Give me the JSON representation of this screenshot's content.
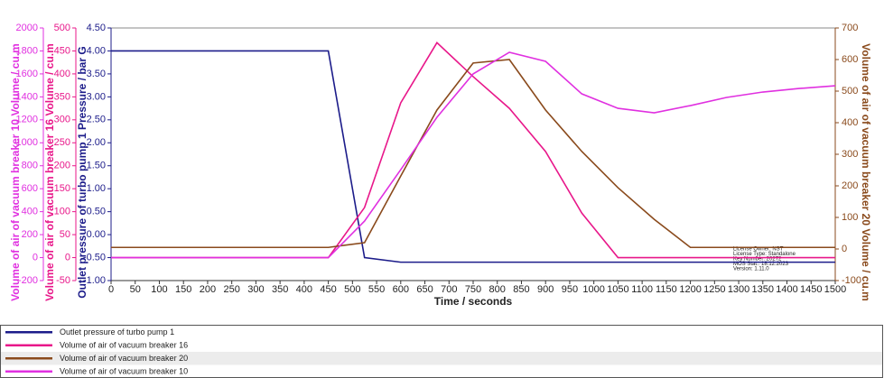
{
  "chart_data": {
    "type": "line",
    "x_label": "Time / seconds",
    "x": [
      0,
      75,
      150,
      225,
      300,
      375,
      450,
      525,
      600,
      675,
      750,
      825,
      900,
      975,
      1050,
      1125,
      1200,
      1275,
      1350,
      1425,
      1500
    ],
    "xlim": [
      0,
      1500
    ],
    "xticks": [
      0,
      50,
      100,
      150,
      200,
      250,
      300,
      350,
      400,
      450,
      500,
      550,
      600,
      650,
      700,
      750,
      800,
      850,
      900,
      950,
      1000,
      1050,
      1100,
      1150,
      1200,
      1250,
      1300,
      1350,
      1400,
      1450,
      1500
    ],
    "axes": [
      {
        "label": "Volume of air of vacuum breaker 10 Volume / cu.m",
        "color": "#e030e0",
        "side": "left",
        "lim": [
          -200,
          2000
        ],
        "ticks": [
          -200,
          0,
          200,
          400,
          600,
          800,
          1000,
          1200,
          1400,
          1600,
          1800,
          2000
        ]
      },
      {
        "label": "Volume of air of vacuum breaker 16 Volume / cu.m",
        "color": "#e8178a",
        "side": "left",
        "lim": [
          -50,
          500
        ],
        "ticks": [
          -50,
          0,
          50,
          100,
          150,
          200,
          250,
          300,
          350,
          400,
          450,
          500
        ]
      },
      {
        "label": "Outlet pressure of turbo pump 1 Pressure / bar G",
        "color": "#1c1c8a",
        "side": "left",
        "lim": [
          -1,
          4.5
        ],
        "ticks": [
          {
            "value": -1,
            "label": "-1.00"
          },
          {
            "value": -0.5,
            "label": "-0.50"
          },
          {
            "value": 0,
            "label": "0.00"
          },
          {
            "value": 0.5,
            "label": "0.50"
          },
          {
            "value": 1,
            "label": "1.00"
          },
          {
            "value": 1.5,
            "label": "1.50"
          },
          {
            "value": 2,
            "label": "2.00"
          },
          {
            "value": 2.5,
            "label": "2.50"
          },
          {
            "value": 3,
            "label": "3.00"
          },
          {
            "value": 3.5,
            "label": "3.50"
          },
          {
            "value": 4,
            "label": "4.00"
          },
          {
            "value": 4.5,
            "label": "4.50"
          }
        ]
      },
      {
        "label": "Volume of air of vacuum breaker 20 Volume / cu.m",
        "color": "#8a4a1c",
        "side": "right",
        "lim": [
          -100,
          700
        ],
        "ticks": [
          -100,
          0,
          100,
          200,
          300,
          400,
          500,
          600,
          700
        ]
      }
    ],
    "series": [
      {
        "name": "Outlet pressure of turbo pump 1",
        "color": "#1c1c8a",
        "axis": 2,
        "values": [
          4,
          4,
          4,
          4,
          4,
          4,
          4,
          -0.5,
          -0.6,
          -0.6,
          -0.6,
          -0.6,
          -0.6,
          -0.6,
          -0.6,
          -0.6,
          -0.6,
          -0.6,
          -0.6,
          -0.6,
          -0.6
        ]
      },
      {
        "name": "Volume of air of vacuum breaker 16",
        "color": "#e8178a",
        "axis": 1,
        "values": [
          0,
          0,
          0,
          0,
          0,
          0,
          0,
          109,
          337,
          468,
          394,
          325,
          231,
          97,
          0,
          0,
          0,
          0,
          0,
          0,
          0
        ]
      },
      {
        "name": "Volume of air of vacuum breaker 20",
        "color": "#8a4a1c",
        "axis": 3,
        "values": [
          5,
          5,
          5,
          5,
          5,
          5,
          5,
          20,
          231,
          440,
          589,
          600,
          440,
          309,
          194,
          94,
          5,
          5,
          5,
          5,
          5
        ]
      },
      {
        "name": "Volume of air of vacuum breaker 10",
        "color": "#e030e0",
        "axis": 0,
        "values": [
          0,
          0,
          0,
          0,
          0,
          0,
          0,
          318,
          766,
          1222,
          1600,
          1788,
          1709,
          1426,
          1300,
          1261,
          1324,
          1395,
          1442,
          1473,
          1497
        ]
      }
    ],
    "license_info": [
      "License Owner: NST",
      "License Type: Standalone",
      "Key Number: 20272",
      "MOS Stat.: 18.12.2023",
      "Version: 1.11.0"
    ]
  }
}
